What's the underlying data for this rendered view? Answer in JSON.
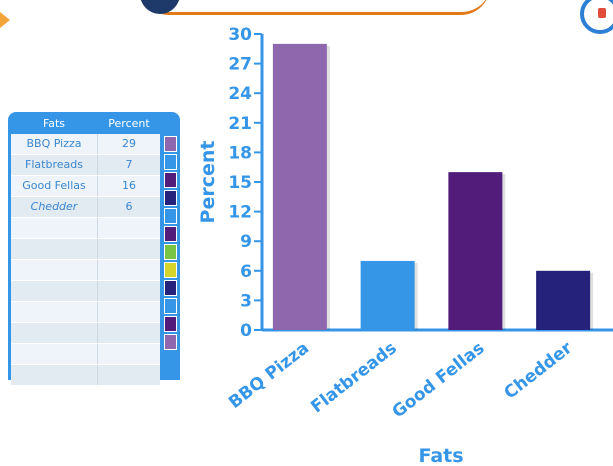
{
  "table": {
    "headers": {
      "fats": "Fats",
      "percent": "Percent"
    },
    "rows": [
      {
        "fats": "BBQ Pizza",
        "percent": "29"
      },
      {
        "fats": "Flatbreads",
        "percent": "7"
      },
      {
        "fats": "Good Fellas",
        "percent": "16"
      },
      {
        "fats": "Chedder",
        "percent": "6"
      },
      {
        "fats": "",
        "percent": ""
      },
      {
        "fats": "",
        "percent": ""
      },
      {
        "fats": "",
        "percent": ""
      },
      {
        "fats": "",
        "percent": ""
      },
      {
        "fats": "",
        "percent": ""
      },
      {
        "fats": "",
        "percent": ""
      },
      {
        "fats": "",
        "percent": ""
      },
      {
        "fats": "",
        "percent": ""
      }
    ],
    "swatch_colors": [
      "#8e67ad",
      "#3596e8",
      "#521c7a",
      "#24227a",
      "#3596e8",
      "#521c7a",
      "#7ac443",
      "#d4d42a",
      "#24227a",
      "#3596e8",
      "#521c7a",
      "#8e67ad"
    ]
  },
  "chart_data": {
    "type": "bar",
    "categories": [
      "BBQ Pizza",
      "Flatbreads",
      "Good Fellas",
      "Chedder"
    ],
    "values": [
      29,
      7,
      16,
      6
    ],
    "colors": [
      "#8e67ad",
      "#3596e8",
      "#521c7a",
      "#24227a"
    ],
    "xlabel": "Fats",
    "ylabel": "Percent",
    "ylim": [
      0,
      30
    ],
    "yticks": [
      0,
      3,
      6,
      9,
      12,
      15,
      18,
      21,
      24,
      27,
      30
    ],
    "grid": false,
    "axis_color": "#3596e8"
  }
}
